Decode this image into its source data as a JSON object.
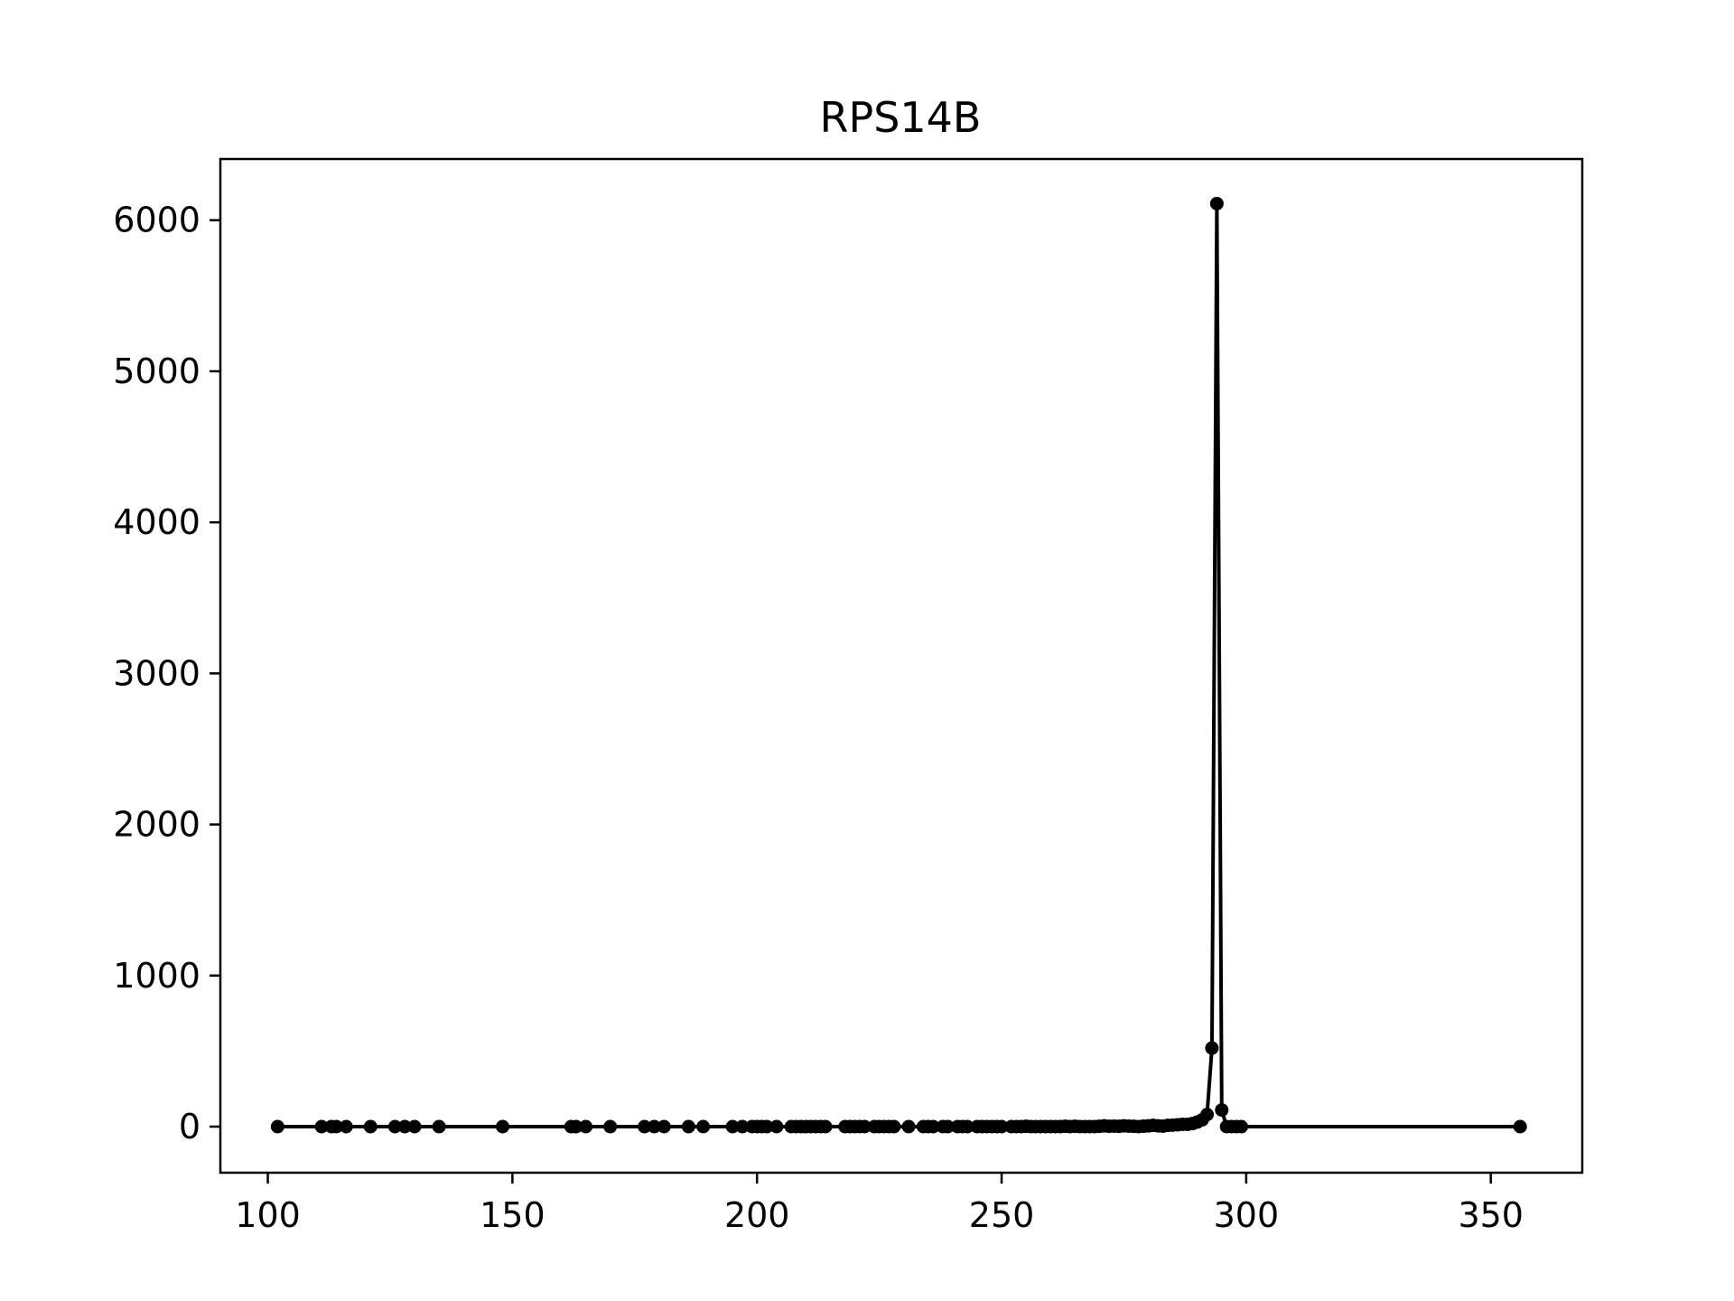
{
  "chart_data": {
    "type": "line",
    "title": "RPS14B",
    "xlabel": "",
    "ylabel": "",
    "xlim": [
      90.3,
      368.7
    ],
    "ylim": [
      -305,
      6405
    ],
    "xticks": [
      100,
      150,
      200,
      250,
      300,
      350
    ],
    "yticks": [
      0,
      1000,
      2000,
      3000,
      4000,
      5000,
      6000
    ],
    "grid": false,
    "legend": "none",
    "line_color": "#000000",
    "marker": "circle",
    "series": [
      {
        "x": [
          102,
          111,
          113,
          114,
          116,
          121,
          126,
          128,
          130,
          135,
          148,
          162,
          163,
          165,
          170,
          177,
          179,
          181,
          186,
          189,
          195,
          197,
          199,
          200,
          201,
          202,
          204,
          207,
          208,
          209,
          210,
          211,
          212,
          213,
          214,
          218,
          219,
          220,
          221,
          222,
          224,
          225,
          226,
          227,
          228,
          231,
          234,
          235,
          236,
          238,
          239,
          241,
          242,
          243,
          245,
          246,
          247,
          248,
          249,
          250,
          252,
          253,
          254,
          255,
          256,
          257,
          258,
          259,
          260,
          261,
          262,
          263,
          264,
          265,
          266,
          267,
          268,
          269,
          270,
          271,
          272,
          273,
          274,
          275,
          276,
          277,
          278,
          279,
          280,
          281,
          282,
          283,
          284,
          285,
          286,
          287,
          288,
          289,
          290,
          291,
          292,
          293,
          294,
          295,
          296,
          297,
          298,
          299,
          356
        ],
        "y": [
          0,
          0,
          0,
          0,
          0,
          0,
          0,
          0,
          0,
          0,
          0,
          0,
          0,
          0,
          0,
          0,
          0,
          0,
          0,
          0,
          0,
          0,
          0,
          0,
          0,
          0,
          0,
          0,
          0,
          0,
          0,
          0,
          0,
          0,
          0,
          0,
          0,
          0,
          0,
          0,
          0,
          0,
          0,
          0,
          0,
          0,
          0,
          0,
          0,
          0,
          0,
          0,
          0,
          0,
          0,
          0,
          0,
          0,
          0,
          0,
          0,
          0,
          0,
          2,
          0,
          0,
          0,
          0,
          0,
          0,
          0,
          2,
          0,
          2,
          0,
          0,
          0,
          0,
          2,
          5,
          2,
          3,
          2,
          5,
          3,
          2,
          0,
          3,
          5,
          8,
          5,
          3,
          8,
          10,
          12,
          15,
          15,
          20,
          30,
          45,
          80,
          520,
          6110,
          110,
          0,
          0,
          0,
          0,
          0
        ]
      }
    ]
  }
}
